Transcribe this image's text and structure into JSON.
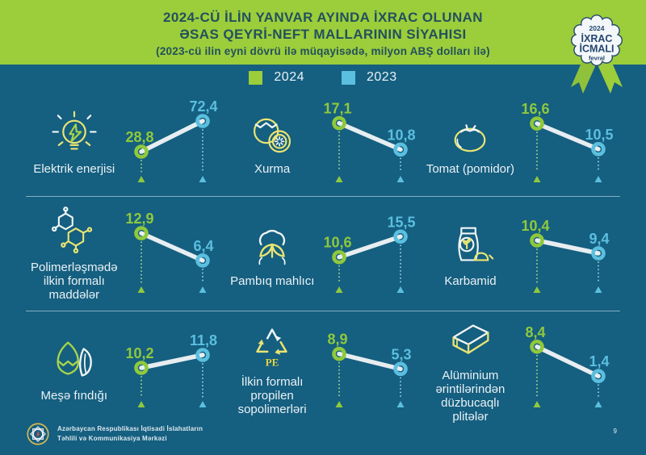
{
  "header": {
    "title_line1": "2024-CÜ İLİN YANVAR AYINDA İXRAC OLUNAN",
    "title_line2": "ƏSAS QEYRİ-NEFT MALLARININ SİYAHISI",
    "subtitle": "(2023-cü ilin eyni dövrü ilə müqayisədə, milyon ABŞ dolları ilə)"
  },
  "badge": {
    "year": "2024",
    "line1": "İXRAC",
    "line2": "İCMALI",
    "month": "fevral"
  },
  "legend": [
    {
      "label": "2024",
      "color": "#9bce3a"
    },
    {
      "label": "2023",
      "color": "#5bbfdf"
    }
  ],
  "cards": [
    {
      "label": "Elektrik enerjisi",
      "icon": "light-bulb",
      "display_2024": "28,8",
      "display_2023": "72,4",
      "value_2024": 28.8,
      "value_2023": 72.4
    },
    {
      "label": "Xurma",
      "icon": "persimmon",
      "display_2024": "17,1",
      "display_2023": "10,8",
      "value_2024": 17.1,
      "value_2023": 10.8
    },
    {
      "label": "Tomat (pomidor)",
      "icon": "tomato",
      "display_2024": "16,6",
      "display_2023": "10,5",
      "value_2024": 16.6,
      "value_2023": 10.5
    },
    {
      "label": "Polimerləşmədə ilkin formalı maddələr",
      "icon": "polymer-molecule",
      "display_2024": "12,9",
      "display_2023": "6,4",
      "value_2024": 12.9,
      "value_2023": 6.4
    },
    {
      "label": "Pambıq mahlıcı",
      "icon": "cotton-boll",
      "display_2024": "10,6",
      "display_2023": "15,5",
      "value_2024": 10.6,
      "value_2023": 15.5
    },
    {
      "label": "Karbamid",
      "icon": "fertilizer-bag",
      "display_2024": "10,4",
      "display_2023": "9,4",
      "value_2024": 10.4,
      "value_2023": 9.4
    },
    {
      "label": "Meşə fındığı",
      "icon": "hazelnut",
      "display_2024": "10,2",
      "display_2023": "11,8",
      "value_2024": 10.2,
      "value_2023": 11.8
    },
    {
      "label": "İlkin formalı propilen sopolimerləri",
      "icon": "recycle-pe",
      "icon_text": "PE",
      "display_2024": "8,9",
      "display_2023": "5,3",
      "value_2024": 8.9,
      "value_2023": 5.3
    },
    {
      "label": "Alüminium ərintilərindən düzbucaqlı plitələr",
      "icon": "aluminium-plate",
      "display_2024": "8,4",
      "display_2023": "1,4",
      "value_2024": 8.4,
      "value_2023": 1.4
    }
  ],
  "footer": {
    "org_line1": "Azərbaycan Respublikası İqtisadi İslahatların",
    "org_line2": "Təhlili və Kommunikasiya Mərkəzi",
    "page_number": "9"
  },
  "colors": {
    "background": "#155f80",
    "header_green": "#9bce3a",
    "header_text": "#24505e",
    "green": "#8fc93c",
    "blue": "#5bbfdf",
    "connector": "#e7edf0",
    "dotted_green": "#b8dd8c",
    "dotted_blue": "#a6d9ec",
    "badge_navy": "#24466e",
    "label_text": "#eaf2f5"
  },
  "chart_data": {
    "type": "line",
    "subtype": "slope-comparison",
    "title": "2024-cü ilin yanvar ayında ixrac olunan əsas qeyri-neft mallarının siyahısı",
    "subtitle": "2023-cü ilin eyni dövrü ilə müqayisədə, milyon ABŞ dolları ilə",
    "unit": "milyon ABŞ dolları",
    "legend_position": "top",
    "categories": [
      "Elektrik enerjisi",
      "Xurma",
      "Tomat (pomidor)",
      "Polimerləşmədə ilkin formalı maddələr",
      "Pambıq mahlıcı",
      "Karbamid",
      "Meşə fındığı",
      "İlkin formalı propilen sopolimerləri",
      "Alüminium ərintilərindən düzbucaqlı plitələr"
    ],
    "series": [
      {
        "name": "2024",
        "color": "#8fc93c",
        "values": [
          28.8,
          17.1,
          16.6,
          12.9,
          10.6,
          10.4,
          10.2,
          8.9,
          8.4
        ]
      },
      {
        "name": "2023",
        "color": "#5bbfdf",
        "values": [
          72.4,
          10.8,
          10.5,
          6.4,
          15.5,
          9.4,
          11.8,
          5.3,
          1.4
        ]
      }
    ]
  }
}
